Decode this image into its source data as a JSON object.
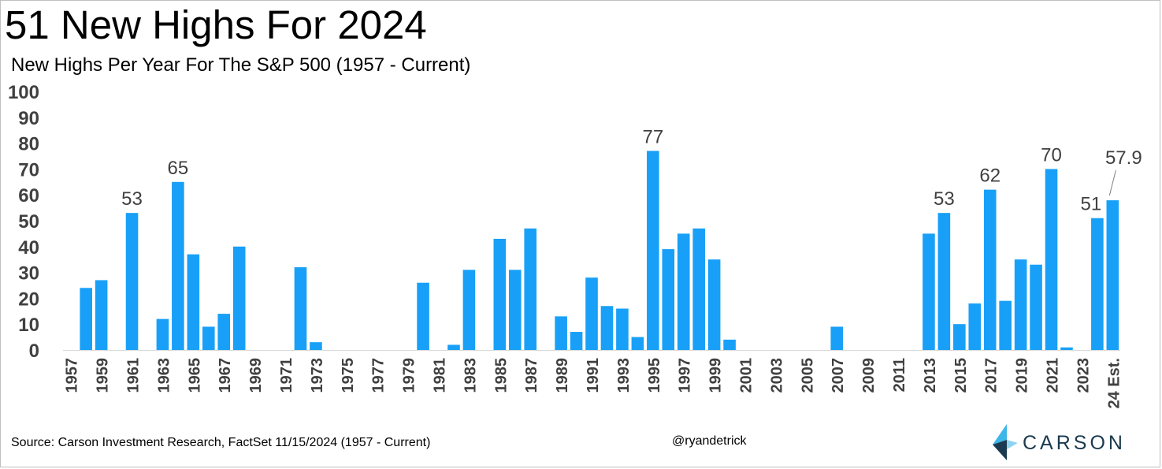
{
  "title": "51 New Highs For 2024",
  "subtitle": "New Highs Per Year For The S&P 500 (1957 - Current)",
  "source": "Source: Carson Investment Research, FactSet 11/15/2024 (1957 - Current)",
  "handle": "@ryandetrick",
  "brand": "CARSON",
  "colors": {
    "bar": "#18a0f8",
    "text": "#404040",
    "logo_dark": "#1c3a4f",
    "logo_light": "#3db6e8"
  },
  "chart_data": {
    "type": "bar",
    "title": "51 New Highs For 2024",
    "subtitle": "New Highs Per Year For The S&P 500 (1957 - Current)",
    "ylim": [
      0,
      100
    ],
    "yticks": [
      "0",
      "10",
      "20",
      "30",
      "40",
      "50",
      "60",
      "70",
      "80",
      "90",
      "100"
    ],
    "grid": false,
    "categories": [
      "1957",
      "1958",
      "1959",
      "1960",
      "1961",
      "1962",
      "1963",
      "1964",
      "1965",
      "1966",
      "1967",
      "1968",
      "1969",
      "1970",
      "1971",
      "1972",
      "1973",
      "1974",
      "1975",
      "1976",
      "1977",
      "1978",
      "1979",
      "1980",
      "1981",
      "1982",
      "1983",
      "1984",
      "1985",
      "1986",
      "1987",
      "1988",
      "1989",
      "1990",
      "1991",
      "1992",
      "1993",
      "1994",
      "1995",
      "1996",
      "1997",
      "1998",
      "1999",
      "2000",
      "2001",
      "2002",
      "2003",
      "2004",
      "2005",
      "2006",
      "2007",
      "2008",
      "2009",
      "2010",
      "2011",
      "2012",
      "2013",
      "2014",
      "2015",
      "2016",
      "2017",
      "2018",
      "2019",
      "2020",
      "2021",
      "2022",
      "2023",
      "2024",
      "24 Est."
    ],
    "tick_labels": [
      "1957",
      "",
      "1959",
      "",
      "1961",
      "",
      "1963",
      "",
      "1965",
      "",
      "1967",
      "",
      "1969",
      "",
      "1971",
      "",
      "1973",
      "",
      "1975",
      "",
      "1977",
      "",
      "1979",
      "",
      "1981",
      "",
      "1983",
      "",
      "1985",
      "",
      "1987",
      "",
      "1989",
      "",
      "1991",
      "",
      "1993",
      "",
      "1995",
      "",
      "1997",
      "",
      "1999",
      "",
      "2001",
      "",
      "2003",
      "",
      "2005",
      "",
      "2007",
      "",
      "2009",
      "",
      "2011",
      "",
      "2013",
      "",
      "2015",
      "",
      "2017",
      "",
      "2019",
      "",
      "2021",
      "",
      "2023",
      "",
      "24 Est."
    ],
    "values": [
      0,
      24,
      27,
      0,
      53,
      0,
      12,
      65,
      37,
      9,
      14,
      40,
      0,
      0,
      0,
      32,
      3,
      0,
      0,
      0,
      0,
      0,
      0,
      26,
      0,
      2,
      31,
      0,
      43,
      31,
      47,
      0,
      13,
      7,
      28,
      17,
      16,
      5,
      77,
      39,
      45,
      47,
      35,
      4,
      0,
      0,
      0,
      0,
      0,
      0,
      9,
      0,
      0,
      0,
      0,
      0,
      45,
      53,
      10,
      18,
      62,
      19,
      35,
      33,
      70,
      1,
      0,
      51,
      57.9
    ],
    "data_labels": [
      {
        "category": "1961",
        "text": "53"
      },
      {
        "category": "1964",
        "text": "65"
      },
      {
        "category": "1995",
        "text": "77"
      },
      {
        "category": "2014",
        "text": "53"
      },
      {
        "category": "2017",
        "text": "62"
      },
      {
        "category": "2021",
        "text": "70"
      },
      {
        "category": "2024",
        "text": "51"
      },
      {
        "category": "24 Est.",
        "text": "57.9"
      }
    ]
  }
}
